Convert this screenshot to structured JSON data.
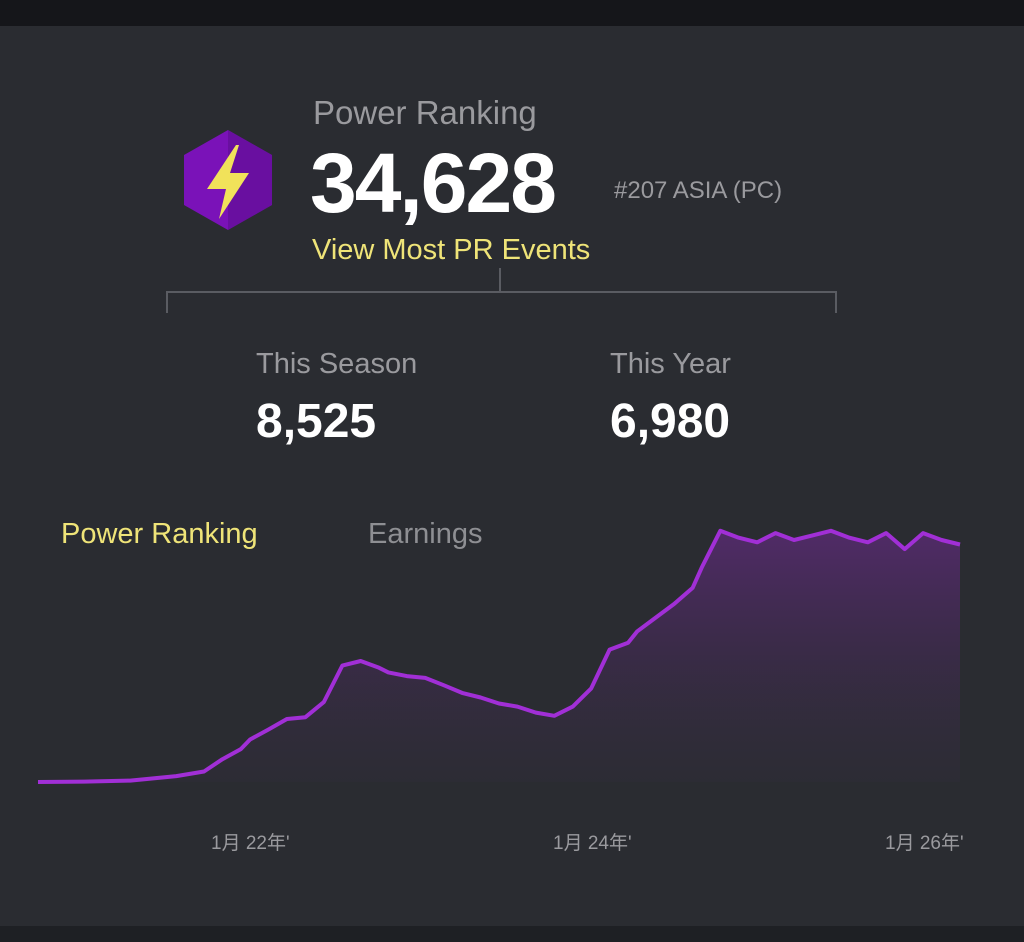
{
  "header": {
    "title": "Power Ranking",
    "value": "34,628",
    "rank": "#207 ASIA (PC)",
    "link": "View Most PR Events"
  },
  "stats": [
    {
      "label": "This Season",
      "value": "8,525"
    },
    {
      "label": "This Year",
      "value": "6,980"
    }
  ],
  "tabs": [
    {
      "label": "Power Ranking",
      "active": true
    },
    {
      "label": "Earnings",
      "active": false
    }
  ],
  "colors": {
    "accent": "#efe478",
    "line": "#a12fd6",
    "icon_bg": "#7a12b8",
    "background": "#2a2c31"
  },
  "icon": "lightning-hexagon-icon",
  "chart_data": {
    "type": "area",
    "xticks": [
      "1月 22年'",
      "1月 24年'",
      "1月 26年'"
    ],
    "x": [
      0,
      5,
      10,
      15,
      18,
      20,
      22,
      23,
      25,
      27,
      29,
      31,
      33,
      35,
      37,
      38,
      40,
      42,
      44,
      46,
      48,
      50,
      52,
      54,
      56,
      58,
      60,
      62,
      64,
      65,
      67,
      69,
      71,
      72,
      74,
      76,
      78,
      80,
      82,
      84,
      86,
      88,
      90,
      92,
      94,
      96,
      98,
      100
    ],
    "values": [
      0,
      80,
      300,
      1300,
      2300,
      5000,
      7200,
      9300,
      11500,
      13800,
      14200,
      17500,
      25500,
      26500,
      25000,
      24000,
      23200,
      22800,
      21200,
      19500,
      18500,
      17200,
      16500,
      15200,
      14500,
      16500,
      20500,
      29000,
      30500,
      33000,
      36000,
      39000,
      42500,
      47000,
      55000,
      53500,
      52500,
      54500,
      53000,
      54000,
      55000,
      53500,
      52500,
      54500,
      51000,
      54500,
      53000,
      52000
    ],
    "ylim": [
      0,
      60000
    ],
    "grid": false,
    "legend": "none"
  }
}
